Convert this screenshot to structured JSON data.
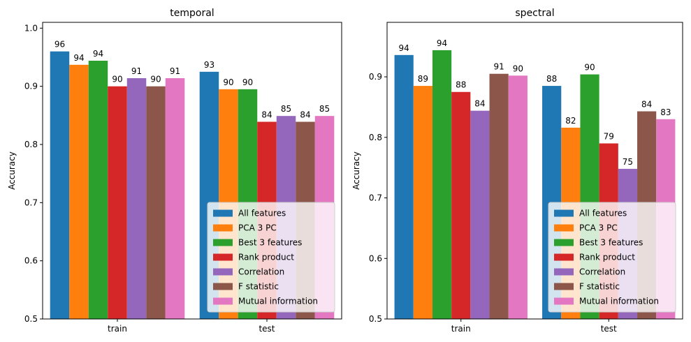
{
  "chart_data": [
    {
      "type": "bar",
      "title": "temporal",
      "xlabel": "",
      "ylabel": "Accuracy",
      "ylim": [
        0.5,
        1.01
      ],
      "yticks": [
        0.5,
        0.6,
        0.7,
        0.8,
        0.9,
        1.0
      ],
      "ytick_labels": [
        "0.5",
        "0.6",
        "0.7",
        "0.8",
        "0.9",
        "1.0"
      ],
      "categories": [
        "train",
        "test"
      ],
      "legend_position": "lower-right",
      "series": [
        {
          "name": "All features",
          "color": "#1f77b4",
          "values": [
            0.96,
            0.925
          ],
          "labels": [
            "96",
            "93"
          ]
        },
        {
          "name": "PCA 3 PC",
          "color": "#ff7f0e",
          "values": [
            0.937,
            0.895
          ],
          "labels": [
            "94",
            "90"
          ]
        },
        {
          "name": "Best 3 features",
          "color": "#2ca02c",
          "values": [
            0.944,
            0.895
          ],
          "labels": [
            "94",
            "90"
          ]
        },
        {
          "name": "Rank product",
          "color": "#d62728",
          "values": [
            0.9,
            0.839
          ],
          "labels": [
            "90",
            "84"
          ]
        },
        {
          "name": "Correlation",
          "color": "#9467bd",
          "values": [
            0.914,
            0.849
          ],
          "labels": [
            "91",
            "85"
          ]
        },
        {
          "name": "F statistic",
          "color": "#8c564b",
          "values": [
            0.9,
            0.839
          ],
          "labels": [
            "90",
            "84"
          ]
        },
        {
          "name": "Mutual information",
          "color": "#e377c2",
          "values": [
            0.914,
            0.849
          ],
          "labels": [
            "91",
            "85"
          ]
        }
      ]
    },
    {
      "type": "bar",
      "title": "spectral",
      "xlabel": "",
      "ylabel": "Accuracy",
      "ylim": [
        0.5,
        0.99
      ],
      "yticks": [
        0.5,
        0.6,
        0.7,
        0.8,
        0.9
      ],
      "ytick_labels": [
        "0.5",
        "0.6",
        "0.7",
        "0.8",
        "0.9"
      ],
      "categories": [
        "train",
        "test"
      ],
      "legend_position": "lower-right",
      "series": [
        {
          "name": "All features",
          "color": "#1f77b4",
          "values": [
            0.936,
            0.885
          ],
          "labels": [
            "94",
            "88"
          ]
        },
        {
          "name": "PCA 3 PC",
          "color": "#ff7f0e",
          "values": [
            0.885,
            0.816
          ],
          "labels": [
            "89",
            "82"
          ]
        },
        {
          "name": "Best 3 features",
          "color": "#2ca02c",
          "values": [
            0.944,
            0.904
          ],
          "labels": [
            "94",
            "90"
          ]
        },
        {
          "name": "Rank product",
          "color": "#d62728",
          "values": [
            0.875,
            0.79
          ],
          "labels": [
            "88",
            "79"
          ]
        },
        {
          "name": "Correlation",
          "color": "#9467bd",
          "values": [
            0.844,
            0.748
          ],
          "labels": [
            "84",
            "75"
          ]
        },
        {
          "name": "F statistic",
          "color": "#8c564b",
          "values": [
            0.905,
            0.843
          ],
          "labels": [
            "91",
            "84"
          ]
        },
        {
          "name": "Mutual information",
          "color": "#e377c2",
          "values": [
            0.902,
            0.83
          ],
          "labels": [
            "90",
            "83"
          ]
        }
      ]
    }
  ]
}
